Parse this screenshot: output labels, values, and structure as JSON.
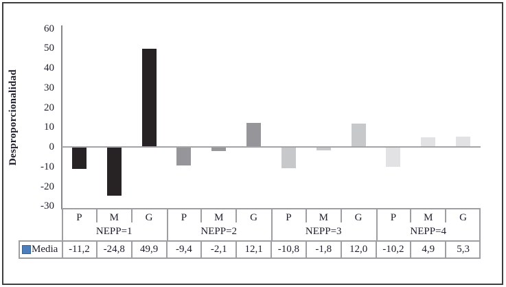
{
  "chart_data": {
    "type": "bar",
    "title": "",
    "ylabel": "Desproporcionalidad",
    "xlabel": "",
    "ylim": [
      -30,
      60
    ],
    "yticks": [
      60,
      50,
      40,
      30,
      20,
      10,
      0,
      -10,
      -20,
      -30
    ],
    "grid": false,
    "legend_position": "attached-data-table-left",
    "categories": [
      "P",
      "M",
      "G"
    ],
    "group_labels": [
      "NEPP=1",
      "NEPP=2",
      "NEPP=3",
      "NEPP=4"
    ],
    "series": [
      {
        "name": "Media",
        "values": [
          -11.2,
          -24.8,
          49.9,
          -9.4,
          -2.1,
          12.1,
          -10.8,
          -1.8,
          12.0,
          -10.2,
          4.9,
          5.3
        ]
      }
    ],
    "value_labels": [
      "-11,2",
      "-24,8",
      "49,9",
      "-9,4",
      "-2,1",
      "12,1",
      "-10,8",
      "-1,8",
      "12,0",
      "-10,2",
      "4,9",
      "5,3"
    ],
    "colors": {
      "group_bar_colors": [
        "#272223",
        "#96969a",
        "#c7c8ca",
        "#e2e2e4"
      ],
      "legend_key_fill": "#4c7ebe",
      "legend_key_border": "#36618e",
      "axis_line": "#87878b",
      "zero_line": "#a4a4a8",
      "table_border": "#9e9ea2",
      "text": "#1d1d2b",
      "frame_border": "#3d3d3f"
    }
  }
}
